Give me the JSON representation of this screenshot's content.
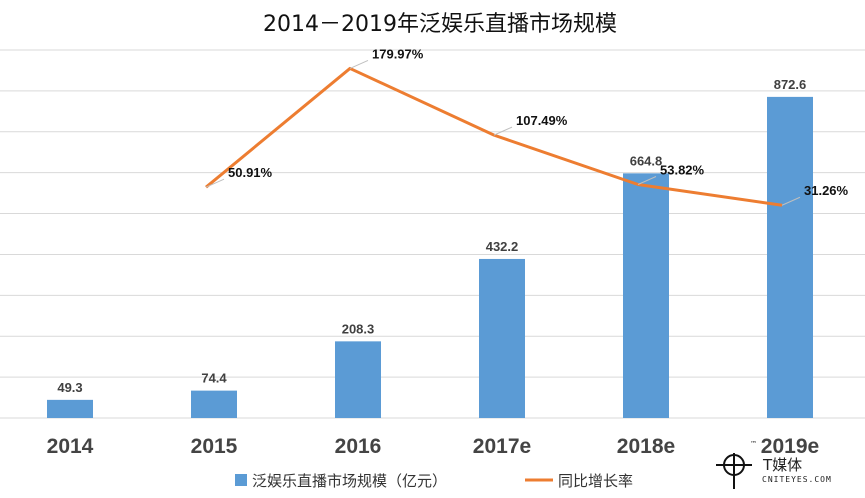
{
  "colors": {
    "bar": "#5b9bd5",
    "line": "#ed7d31",
    "grid": "#d9d9d9",
    "background": "#ffffff"
  },
  "chart_data": {
    "type": "bar",
    "title": "2014－2019年泛娱乐直播市场规模",
    "categories": [
      "2014",
      "2015",
      "2016",
      "2017e",
      "2018e",
      "2019e"
    ],
    "series": [
      {
        "name": "泛娱乐直播市场规模（亿元）",
        "type": "bar",
        "values": [
          49.3,
          74.4,
          208.3,
          432.2,
          664.8,
          872.6
        ],
        "labels": [
          "49.3",
          "74.4",
          "208.3",
          "432.2",
          "664.8",
          "872.6"
        ]
      },
      {
        "name": "同比增长率",
        "type": "line",
        "values": [
          null,
          50.91,
          179.97,
          107.49,
          53.82,
          31.26
        ],
        "labels": [
          "",
          "50.91%",
          "179.97%",
          "107.49%",
          "53.82%",
          "31.26%"
        ],
        "unit": "%"
      }
    ],
    "ylim": [
      0,
      1000
    ],
    "y2lim": [
      -200,
      200
    ],
    "grid": true,
    "legend_position": "bottom"
  },
  "watermark": {
    "logo_glyph": "T",
    "name": "T媒体",
    "site": "CNITEYES.COM",
    "mark": "™"
  }
}
